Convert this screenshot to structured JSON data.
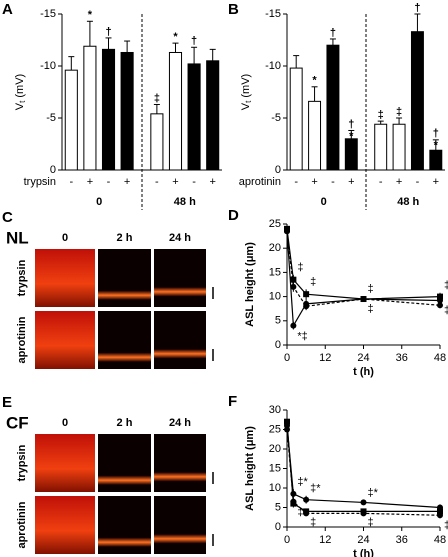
{
  "chart_data": [
    {
      "type": "bar",
      "panel": "A",
      "y_label": {
        "main": "V",
        "sub": "t",
        "unit": "(mV)"
      },
      "ylim": [
        0,
        -15
      ],
      "yticks": [
        0,
        -5,
        -10,
        -15
      ],
      "categories": [
        "-",
        "+",
        "-",
        "+",
        "-",
        "+",
        "-",
        "+"
      ],
      "row_label": "trypsin",
      "groups": [
        "0",
        "48 h"
      ],
      "values": [
        -9.6,
        -11.9,
        -11.6,
        -11.3,
        -5.4,
        -11.3,
        -10.2,
        -10.5
      ],
      "errors": [
        1.3,
        2.4,
        1.1,
        1.1,
        0.9,
        0.9,
        1.6,
        1.1
      ],
      "bar_colors": [
        "#ffffff",
        "#ffffff",
        "#000000",
        "#000000",
        "#ffffff",
        "#ffffff",
        "#000000",
        "#000000"
      ],
      "annotations": [
        null,
        [
          "*"
        ],
        [
          "†"
        ],
        null,
        [
          "‡"
        ],
        [
          "*"
        ],
        [
          "†"
        ],
        null
      ]
    },
    {
      "type": "bar",
      "panel": "B",
      "y_label": {
        "main": "V",
        "sub": "t",
        "unit": "(mV)"
      },
      "ylim": [
        0,
        -15
      ],
      "yticks": [
        0,
        -5,
        -10,
        -15
      ],
      "categories": [
        "-",
        "+",
        "-",
        "+",
        "-",
        "+",
        "-",
        "+"
      ],
      "row_label": "aprotinin",
      "groups": [
        "0",
        "48 h"
      ],
      "values": [
        -9.8,
        -6.6,
        -12.0,
        -3.0,
        -4.4,
        -4.4,
        -13.3,
        -1.9
      ],
      "errors": [
        1.2,
        1.4,
        0.6,
        0.8,
        0.3,
        0.6,
        1.7,
        1.0
      ],
      "bar_colors": [
        "#ffffff",
        "#ffffff",
        "#000000",
        "#000000",
        "#ffffff",
        "#ffffff",
        "#000000",
        "#000000"
      ],
      "annotations": [
        null,
        [
          "*"
        ],
        [
          "†"
        ],
        [
          "†",
          "*"
        ],
        [
          "‡"
        ],
        [
          "‡"
        ],
        [
          "†"
        ],
        [
          "†",
          "*"
        ]
      ]
    },
    {
      "type": "line",
      "panel": "D",
      "y_label": "ASL height (μm)",
      "x_label": "t (h)",
      "xlim": [
        0,
        48
      ],
      "xticks": [
        0,
        12,
        24,
        36,
        48
      ],
      "ylim": [
        0,
        25
      ],
      "yticks": [
        0,
        5,
        10,
        15,
        20,
        25
      ],
      "x": [
        0,
        2,
        6,
        24,
        48
      ],
      "series": [
        {
          "marker": "square",
          "dash": false,
          "color": "#000000",
          "values": [
            24,
            13.5,
            10.5,
            9.5,
            10
          ],
          "errors": [
            0.8,
            1.0,
            1.0,
            0.6,
            0.8
          ],
          "point_labels": [
            null,
            "‡",
            "‡",
            "‡",
            "‡"
          ],
          "label_position": "above"
        },
        {
          "marker": "circle",
          "dash": false,
          "color": "#000000",
          "values": [
            23.5,
            4,
            8.5,
            9.5,
            9.2
          ],
          "errors": [
            0.8,
            0.8,
            1.0,
            0.6,
            0.6
          ],
          "point_labels": [
            null,
            "*‡",
            null,
            "‡",
            "‡"
          ],
          "label_position": "below"
        },
        {
          "marker": "circle",
          "dash": true,
          "color": "#000000",
          "values": [
            23.5,
            12,
            8,
            9.5,
            8.2
          ],
          "errors": [
            0.8,
            1.0,
            0.8,
            0.6,
            0.6
          ]
        }
      ]
    },
    {
      "type": "line",
      "panel": "F",
      "y_label": "ASL height (μm)",
      "x_label": "t (h)",
      "xlim": [
        0,
        48
      ],
      "xticks": [
        0,
        12,
        24,
        36,
        48
      ],
      "ylim": [
        0,
        30
      ],
      "yticks": [
        0,
        5,
        10,
        15,
        20,
        25,
        30
      ],
      "x": [
        0,
        2,
        6,
        24,
        48
      ],
      "series": [
        {
          "marker": "circle",
          "dash": false,
          "color": "#000000",
          "values": [
            26,
            8.5,
            7,
            6.3,
            5
          ],
          "errors": [
            1.0,
            1.2,
            1.0,
            0.6,
            0.8
          ],
          "point_labels": [
            null,
            "‡*",
            "‡*",
            "‡*",
            null
          ],
          "label_position": "above"
        },
        {
          "marker": "square",
          "dash": false,
          "color": "#000000",
          "values": [
            27,
            6,
            4,
            4,
            4
          ],
          "errors": [
            1.0,
            1.0,
            0.6,
            0.6,
            0.6
          ]
        },
        {
          "marker": "circle",
          "dash": true,
          "color": "#000000",
          "values": [
            25,
            6.5,
            3.5,
            3.5,
            3
          ],
          "errors": [
            1.0,
            1.0,
            0.6,
            0.6,
            0.8
          ],
          "point_labels": [
            null,
            "‡",
            "‡",
            "‡",
            "‡"
          ],
          "label_position": "below"
        }
      ]
    }
  ],
  "image_panels": [
    {
      "letter": "C",
      "condition": "NL",
      "times": [
        "0",
        "2 h",
        "24 h"
      ],
      "rows": [
        "trypsin",
        "aprotinin"
      ]
    },
    {
      "letter": "E",
      "condition": "CF",
      "times": [
        "0",
        "2 h",
        "24 h"
      ],
      "rows": [
        "trypsin",
        "aprotinin"
      ]
    }
  ]
}
